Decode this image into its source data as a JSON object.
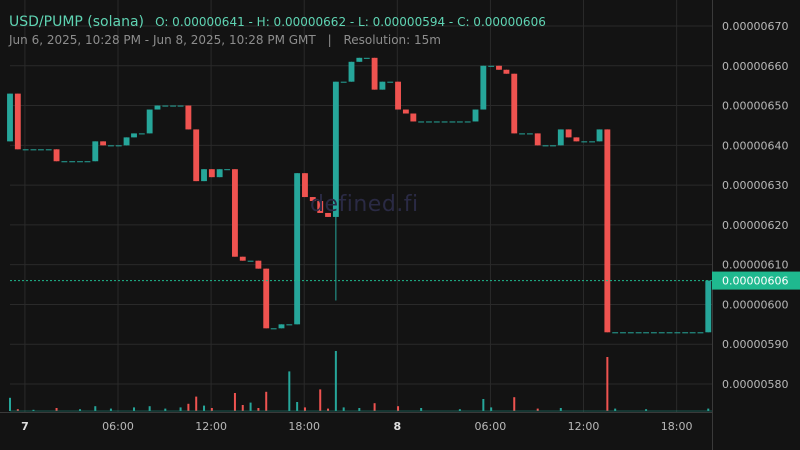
{
  "header": {
    "symbol": "USD/PUMP (solana)",
    "ohlc": "O: 0.00000641 - H: 0.00000662 - L: 0.00000594 - C: 0.00000606",
    "range": "Jun 6, 2025, 10:28 PM - Jun 8, 2025, 10:28 PM GMT",
    "separator": "|",
    "resolution": "Resolution: 15m"
  },
  "watermark": "defined.fi",
  "colors": {
    "background": "#131313",
    "up": "#26a69a",
    "down": "#ef5350",
    "grid": "#2a2a2a",
    "price_line": "#1fb98f",
    "text": "#b8b8b8"
  },
  "chart_data": {
    "type": "candlestick",
    "resolution": "15m",
    "ylim": [
      5.72e-06,
      6.74e-06
    ],
    "yticks": [
      {
        "value": 6.7e-06,
        "label": "0.00000670"
      },
      {
        "value": 6.6e-06,
        "label": "0.00000660"
      },
      {
        "value": 6.5e-06,
        "label": "0.00000650"
      },
      {
        "value": 6.4e-06,
        "label": "0.00000640"
      },
      {
        "value": 6.3e-06,
        "label": "0.00000630"
      },
      {
        "value": 6.2e-06,
        "label": "0.00000620"
      },
      {
        "value": 6.1e-06,
        "label": "0.00000610"
      },
      {
        "value": 6e-06,
        "label": "0.00000600"
      },
      {
        "value": 5.9e-06,
        "label": "0.00000590"
      },
      {
        "value": 5.8e-06,
        "label": "0.00000580"
      }
    ],
    "xticks": [
      {
        "label": "7",
        "bold": true,
        "x": 0.04
      },
      {
        "label": "06:00",
        "bold": false,
        "x": 0.29
      },
      {
        "label": "12:00",
        "bold": false,
        "x": 0.54
      },
      {
        "label": "18:00",
        "bold": false,
        "x": 0.79
      },
      {
        "label": "8",
        "bold": true,
        "x": 1.04
      },
      {
        "label": "06:00",
        "bold": false,
        "x": 1.29
      },
      {
        "label": "12:00",
        "bold": false,
        "x": 1.54
      },
      {
        "label": "18:00",
        "bold": false,
        "x": 1.79
      }
    ],
    "last_price": {
      "value": 6.06e-06,
      "label": "0.00000606"
    },
    "candles": [
      {
        "x": 0.0,
        "o": 6.41e-06,
        "h": 6.53e-06,
        "l": 6.41e-06,
        "c": 6.53e-06
      },
      {
        "x": 0.021,
        "o": 6.53e-06,
        "h": 6.53e-06,
        "l": 6.39e-06,
        "c": 6.39e-06
      },
      {
        "x": 0.042,
        "o": 6.39e-06,
        "h": 6.39e-06,
        "l": 6.39e-06,
        "c": 6.39e-06
      },
      {
        "x": 0.063,
        "o": 6.39e-06,
        "h": 6.39e-06,
        "l": 6.39e-06,
        "c": 6.39e-06
      },
      {
        "x": 0.083,
        "o": 6.39e-06,
        "h": 6.39e-06,
        "l": 6.39e-06,
        "c": 6.39e-06
      },
      {
        "x": 0.104,
        "o": 6.39e-06,
        "h": 6.39e-06,
        "l": 6.39e-06,
        "c": 6.39e-06
      },
      {
        "x": 0.125,
        "o": 6.39e-06,
        "h": 6.39e-06,
        "l": 6.36e-06,
        "c": 6.36e-06
      },
      {
        "x": 0.146,
        "o": 6.36e-06,
        "h": 6.36e-06,
        "l": 6.36e-06,
        "c": 6.36e-06
      },
      {
        "x": 0.167,
        "o": 6.36e-06,
        "h": 6.36e-06,
        "l": 6.36e-06,
        "c": 6.36e-06
      },
      {
        "x": 0.188,
        "o": 6.36e-06,
        "h": 6.36e-06,
        "l": 6.36e-06,
        "c": 6.36e-06
      },
      {
        "x": 0.208,
        "o": 6.36e-06,
        "h": 6.36e-06,
        "l": 6.36e-06,
        "c": 6.36e-06
      },
      {
        "x": 0.229,
        "o": 6.36e-06,
        "h": 6.41e-06,
        "l": 6.36e-06,
        "c": 6.41e-06
      },
      {
        "x": 0.25,
        "o": 6.41e-06,
        "h": 6.41e-06,
        "l": 6.4e-06,
        "c": 6.4e-06
      },
      {
        "x": 0.271,
        "o": 6.4e-06,
        "h": 6.4e-06,
        "l": 6.4e-06,
        "c": 6.4e-06
      },
      {
        "x": 0.292,
        "o": 6.4e-06,
        "h": 6.4e-06,
        "l": 6.4e-06,
        "c": 6.4e-06
      },
      {
        "x": 0.313,
        "o": 6.4e-06,
        "h": 6.42e-06,
        "l": 6.4e-06,
        "c": 6.42e-06
      },
      {
        "x": 0.333,
        "o": 6.42e-06,
        "h": 6.43e-06,
        "l": 6.42e-06,
        "c": 6.43e-06
      },
      {
        "x": 0.354,
        "o": 6.43e-06,
        "h": 6.43e-06,
        "l": 6.43e-06,
        "c": 6.43e-06
      },
      {
        "x": 0.375,
        "o": 6.43e-06,
        "h": 6.49e-06,
        "l": 6.43e-06,
        "c": 6.49e-06
      },
      {
        "x": 0.396,
        "o": 6.49e-06,
        "h": 6.5e-06,
        "l": 6.49e-06,
        "c": 6.5e-06
      },
      {
        "x": 0.417,
        "o": 6.5e-06,
        "h": 6.5e-06,
        "l": 6.5e-06,
        "c": 6.5e-06
      },
      {
        "x": 0.438,
        "o": 6.5e-06,
        "h": 6.5e-06,
        "l": 6.5e-06,
        "c": 6.5e-06
      },
      {
        "x": 0.458,
        "o": 6.5e-06,
        "h": 6.5e-06,
        "l": 6.5e-06,
        "c": 6.5e-06
      },
      {
        "x": 0.479,
        "o": 6.5e-06,
        "h": 6.5e-06,
        "l": 6.44e-06,
        "c": 6.44e-06
      },
      {
        "x": 0.5,
        "o": 6.44e-06,
        "h": 6.44e-06,
        "l": 6.31e-06,
        "c": 6.31e-06
      },
      {
        "x": 0.521,
        "o": 6.31e-06,
        "h": 6.34e-06,
        "l": 6.31e-06,
        "c": 6.34e-06
      },
      {
        "x": 0.542,
        "o": 6.34e-06,
        "h": 6.34e-06,
        "l": 6.32e-06,
        "c": 6.32e-06
      },
      {
        "x": 0.563,
        "o": 6.32e-06,
        "h": 6.34e-06,
        "l": 6.32e-06,
        "c": 6.34e-06
      },
      {
        "x": 0.583,
        "o": 6.34e-06,
        "h": 6.34e-06,
        "l": 6.34e-06,
        "c": 6.34e-06
      },
      {
        "x": 0.604,
        "o": 6.34e-06,
        "h": 6.34e-06,
        "l": 6.12e-06,
        "c": 6.12e-06
      },
      {
        "x": 0.625,
        "o": 6.12e-06,
        "h": 6.12e-06,
        "l": 6.11e-06,
        "c": 6.11e-06
      },
      {
        "x": 0.646,
        "o": 6.11e-06,
        "h": 6.11e-06,
        "l": 6.11e-06,
        "c": 6.11e-06
      },
      {
        "x": 0.667,
        "o": 6.11e-06,
        "h": 6.11e-06,
        "l": 6.09e-06,
        "c": 6.09e-06
      },
      {
        "x": 0.688,
        "o": 6.09e-06,
        "h": 6.09e-06,
        "l": 5.94e-06,
        "c": 5.94e-06
      },
      {
        "x": 0.708,
        "o": 5.94e-06,
        "h": 5.94e-06,
        "l": 5.94e-06,
        "c": 5.94e-06
      },
      {
        "x": 0.729,
        "o": 5.94e-06,
        "h": 5.95e-06,
        "l": 5.94e-06,
        "c": 5.95e-06
      },
      {
        "x": 0.75,
        "o": 5.95e-06,
        "h": 5.95e-06,
        "l": 5.95e-06,
        "c": 5.95e-06
      },
      {
        "x": 0.771,
        "o": 5.95e-06,
        "h": 6.33e-06,
        "l": 5.95e-06,
        "c": 6.33e-06
      },
      {
        "x": 0.792,
        "o": 6.33e-06,
        "h": 6.33e-06,
        "l": 6.27e-06,
        "c": 6.27e-06
      },
      {
        "x": 0.813,
        "o": 6.27e-06,
        "h": 6.27e-06,
        "l": 6.26e-06,
        "c": 6.26e-06
      },
      {
        "x": 0.833,
        "o": 6.26e-06,
        "h": 6.26e-06,
        "l": 6.23e-06,
        "c": 6.23e-06
      },
      {
        "x": 0.854,
        "o": 6.23e-06,
        "h": 6.23e-06,
        "l": 6.22e-06,
        "c": 6.22e-06
      },
      {
        "x": 0.875,
        "o": 6.22e-06,
        "h": 6.56e-06,
        "l": 6.01e-06,
        "c": 6.56e-06
      },
      {
        "x": 0.896,
        "o": 6.56e-06,
        "h": 6.56e-06,
        "l": 6.56e-06,
        "c": 6.56e-06
      },
      {
        "x": 0.917,
        "o": 6.56e-06,
        "h": 6.61e-06,
        "l": 6.56e-06,
        "c": 6.61e-06
      },
      {
        "x": 0.938,
        "o": 6.61e-06,
        "h": 6.62e-06,
        "l": 6.61e-06,
        "c": 6.62e-06
      },
      {
        "x": 0.958,
        "o": 6.62e-06,
        "h": 6.62e-06,
        "l": 6.62e-06,
        "c": 6.62e-06
      },
      {
        "x": 0.979,
        "o": 6.62e-06,
        "h": 6.62e-06,
        "l": 6.54e-06,
        "c": 6.54e-06
      },
      {
        "x": 1.0,
        "o": 6.54e-06,
        "h": 6.56e-06,
        "l": 6.54e-06,
        "c": 6.56e-06
      },
      {
        "x": 1.021,
        "o": 6.56e-06,
        "h": 6.56e-06,
        "l": 6.56e-06,
        "c": 6.56e-06
      },
      {
        "x": 1.042,
        "o": 6.56e-06,
        "h": 6.56e-06,
        "l": 6.49e-06,
        "c": 6.49e-06
      },
      {
        "x": 1.063,
        "o": 6.49e-06,
        "h": 6.49e-06,
        "l": 6.48e-06,
        "c": 6.48e-06
      },
      {
        "x": 1.083,
        "o": 6.48e-06,
        "h": 6.48e-06,
        "l": 6.46e-06,
        "c": 6.46e-06
      },
      {
        "x": 1.104,
        "o": 6.46e-06,
        "h": 6.46e-06,
        "l": 6.46e-06,
        "c": 6.46e-06
      },
      {
        "x": 1.125,
        "o": 6.46e-06,
        "h": 6.46e-06,
        "l": 6.46e-06,
        "c": 6.46e-06
      },
      {
        "x": 1.146,
        "o": 6.46e-06,
        "h": 6.46e-06,
        "l": 6.46e-06,
        "c": 6.46e-06
      },
      {
        "x": 1.167,
        "o": 6.46e-06,
        "h": 6.46e-06,
        "l": 6.46e-06,
        "c": 6.46e-06
      },
      {
        "x": 1.188,
        "o": 6.46e-06,
        "h": 6.46e-06,
        "l": 6.46e-06,
        "c": 6.46e-06
      },
      {
        "x": 1.208,
        "o": 6.46e-06,
        "h": 6.46e-06,
        "l": 6.46e-06,
        "c": 6.46e-06
      },
      {
        "x": 1.229,
        "o": 6.46e-06,
        "h": 6.46e-06,
        "l": 6.46e-06,
        "c": 6.46e-06
      },
      {
        "x": 1.25,
        "o": 6.46e-06,
        "h": 6.49e-06,
        "l": 6.46e-06,
        "c": 6.49e-06
      },
      {
        "x": 1.271,
        "o": 6.49e-06,
        "h": 6.6e-06,
        "l": 6.49e-06,
        "c": 6.6e-06
      },
      {
        "x": 1.292,
        "o": 6.6e-06,
        "h": 6.6e-06,
        "l": 6.6e-06,
        "c": 6.6e-06
      },
      {
        "x": 1.313,
        "o": 6.6e-06,
        "h": 6.6e-06,
        "l": 6.59e-06,
        "c": 6.59e-06
      },
      {
        "x": 1.333,
        "o": 6.59e-06,
        "h": 6.59e-06,
        "l": 6.58e-06,
        "c": 6.58e-06
      },
      {
        "x": 1.354,
        "o": 6.58e-06,
        "h": 6.58e-06,
        "l": 6.43e-06,
        "c": 6.43e-06
      },
      {
        "x": 1.375,
        "o": 6.43e-06,
        "h": 6.43e-06,
        "l": 6.43e-06,
        "c": 6.43e-06
      },
      {
        "x": 1.396,
        "o": 6.43e-06,
        "h": 6.43e-06,
        "l": 6.43e-06,
        "c": 6.43e-06
      },
      {
        "x": 1.417,
        "o": 6.43e-06,
        "h": 6.43e-06,
        "l": 6.4e-06,
        "c": 6.4e-06
      },
      {
        "x": 1.438,
        "o": 6.4e-06,
        "h": 6.4e-06,
        "l": 6.4e-06,
        "c": 6.4e-06
      },
      {
        "x": 1.458,
        "o": 6.4e-06,
        "h": 6.4e-06,
        "l": 6.4e-06,
        "c": 6.4e-06
      },
      {
        "x": 1.479,
        "o": 6.4e-06,
        "h": 6.44e-06,
        "l": 6.4e-06,
        "c": 6.44e-06
      },
      {
        "x": 1.5,
        "o": 6.44e-06,
        "h": 6.44e-06,
        "l": 6.42e-06,
        "c": 6.42e-06
      },
      {
        "x": 1.521,
        "o": 6.42e-06,
        "h": 6.42e-06,
        "l": 6.41e-06,
        "c": 6.41e-06
      },
      {
        "x": 1.542,
        "o": 6.41e-06,
        "h": 6.41e-06,
        "l": 6.41e-06,
        "c": 6.41e-06
      },
      {
        "x": 1.563,
        "o": 6.41e-06,
        "h": 6.41e-06,
        "l": 6.41e-06,
        "c": 6.41e-06
      },
      {
        "x": 1.583,
        "o": 6.41e-06,
        "h": 6.44e-06,
        "l": 6.41e-06,
        "c": 6.44e-06
      },
      {
        "x": 1.604,
        "o": 6.44e-06,
        "h": 6.44e-06,
        "l": 5.93e-06,
        "c": 5.93e-06
      },
      {
        "x": 1.625,
        "o": 5.93e-06,
        "h": 5.93e-06,
        "l": 5.93e-06,
        "c": 5.93e-06
      },
      {
        "x": 1.646,
        "o": 5.93e-06,
        "h": 5.93e-06,
        "l": 5.93e-06,
        "c": 5.93e-06
      },
      {
        "x": 1.667,
        "o": 5.93e-06,
        "h": 5.93e-06,
        "l": 5.93e-06,
        "c": 5.93e-06
      },
      {
        "x": 1.688,
        "o": 5.93e-06,
        "h": 5.93e-06,
        "l": 5.93e-06,
        "c": 5.93e-06
      },
      {
        "x": 1.708,
        "o": 5.93e-06,
        "h": 5.93e-06,
        "l": 5.93e-06,
        "c": 5.93e-06
      },
      {
        "x": 1.729,
        "o": 5.93e-06,
        "h": 5.93e-06,
        "l": 5.93e-06,
        "c": 5.93e-06
      },
      {
        "x": 1.75,
        "o": 5.93e-06,
        "h": 5.93e-06,
        "l": 5.93e-06,
        "c": 5.93e-06
      },
      {
        "x": 1.771,
        "o": 5.93e-06,
        "h": 5.93e-06,
        "l": 5.93e-06,
        "c": 5.93e-06
      },
      {
        "x": 1.792,
        "o": 5.93e-06,
        "h": 5.93e-06,
        "l": 5.93e-06,
        "c": 5.93e-06
      },
      {
        "x": 1.813,
        "o": 5.93e-06,
        "h": 5.93e-06,
        "l": 5.93e-06,
        "c": 5.93e-06
      },
      {
        "x": 1.833,
        "o": 5.93e-06,
        "h": 5.93e-06,
        "l": 5.93e-06,
        "c": 5.93e-06
      },
      {
        "x": 1.854,
        "o": 5.93e-06,
        "h": 5.93e-06,
        "l": 5.93e-06,
        "c": 5.93e-06
      },
      {
        "x": 1.875,
        "o": 5.93e-06,
        "h": 6.06e-06,
        "l": 5.93e-06,
        "c": 6.06e-06
      }
    ],
    "volume": [
      {
        "x": 0.0,
        "v": 0.22
      },
      {
        "x": 0.021,
        "v": 0.03
      },
      {
        "x": 0.063,
        "v": 0.02
      },
      {
        "x": 0.125,
        "v": 0.05
      },
      {
        "x": 0.188,
        "v": 0.03
      },
      {
        "x": 0.229,
        "v": 0.08
      },
      {
        "x": 0.271,
        "v": 0.04
      },
      {
        "x": 0.333,
        "v": 0.06
      },
      {
        "x": 0.375,
        "v": 0.08
      },
      {
        "x": 0.417,
        "v": 0.04
      },
      {
        "x": 0.458,
        "v": 0.06
      },
      {
        "x": 0.479,
        "v": 0.12
      },
      {
        "x": 0.5,
        "v": 0.24
      },
      {
        "x": 0.521,
        "v": 0.09
      },
      {
        "x": 0.542,
        "v": 0.05
      },
      {
        "x": 0.604,
        "v": 0.3
      },
      {
        "x": 0.625,
        "v": 0.1
      },
      {
        "x": 0.646,
        "v": 0.14
      },
      {
        "x": 0.667,
        "v": 0.05
      },
      {
        "x": 0.688,
        "v": 0.32
      },
      {
        "x": 0.75,
        "v": 0.66
      },
      {
        "x": 0.771,
        "v": 0.15
      },
      {
        "x": 0.792,
        "v": 0.06
      },
      {
        "x": 0.833,
        "v": 0.36
      },
      {
        "x": 0.854,
        "v": 0.04
      },
      {
        "x": 0.875,
        "v": 1.0
      },
      {
        "x": 0.896,
        "v": 0.06
      },
      {
        "x": 0.938,
        "v": 0.05
      },
      {
        "x": 0.979,
        "v": 0.13
      },
      {
        "x": 1.042,
        "v": 0.08
      },
      {
        "x": 1.104,
        "v": 0.05
      },
      {
        "x": 1.208,
        "v": 0.03
      },
      {
        "x": 1.271,
        "v": 0.2
      },
      {
        "x": 1.292,
        "v": 0.06
      },
      {
        "x": 1.354,
        "v": 0.23
      },
      {
        "x": 1.417,
        "v": 0.04
      },
      {
        "x": 1.479,
        "v": 0.05
      },
      {
        "x": 1.604,
        "v": 0.9
      },
      {
        "x": 1.625,
        "v": 0.04
      },
      {
        "x": 1.708,
        "v": 0.03
      },
      {
        "x": 1.875,
        "v": 0.04
      }
    ]
  }
}
